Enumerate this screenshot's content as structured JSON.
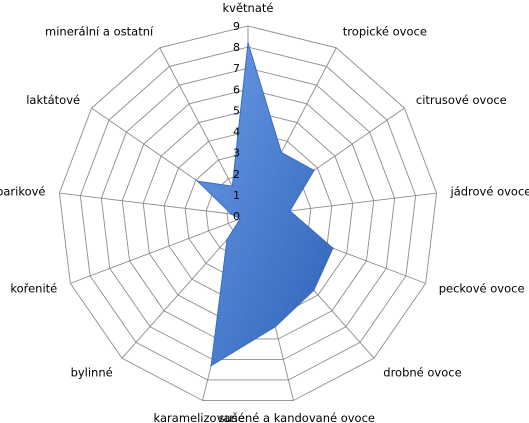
{
  "chart_data": {
    "type": "radar",
    "title": "",
    "categories": [
      "květnaté",
      "tropické ovoce",
      "citrusové ovoce",
      "jádrové ovoce",
      "peckové ovoce",
      "drobné ovoce",
      "sušené a kandované ovoce",
      "karamelizované",
      "bylinné",
      "kořenité",
      "barikové",
      "laktátové",
      "minerální a ostatní"
    ],
    "series": [
      {
        "values": [
          8.2,
          3.4,
          3.8,
          2.0,
          4.3,
          4.7,
          5.4,
          7.3,
          1.5,
          0.4,
          0.8,
          2.9,
          1.6
        ],
        "color": "#4a7fd1"
      }
    ],
    "rlim": [
      0,
      9
    ],
    "ticks": [
      "0",
      "1",
      "2",
      "3",
      "4",
      "5",
      "6",
      "7",
      "8",
      "9"
    ],
    "grid": true,
    "legend": "none"
  }
}
